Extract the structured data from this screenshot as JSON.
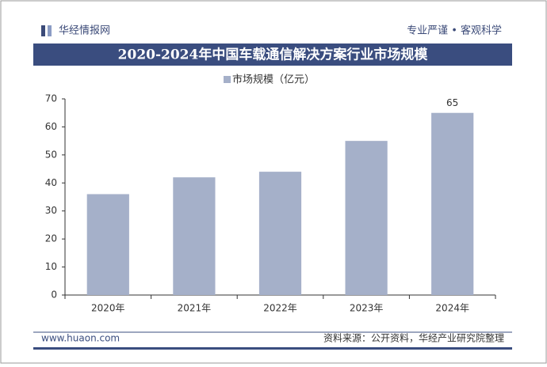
{
  "header": {
    "brand": "华经情报网",
    "slogan": "专业严谨 • 客观科学"
  },
  "chart_data": {
    "type": "bar",
    "title": "2020-2024年中国车载通信解决方案行业市场规模",
    "categories": [
      "2020年",
      "2021年",
      "2022年",
      "2023年",
      "2024年"
    ],
    "series": [
      {
        "name": "市场规模（亿元）",
        "color": "#a5b0c9",
        "values": [
          36,
          42,
          44,
          55,
          65
        ]
      }
    ],
    "value_labels": [
      null,
      null,
      null,
      null,
      "65"
    ],
    "ylim": [
      0,
      70
    ],
    "yticks": [
      0,
      10,
      20,
      30,
      40,
      50,
      60,
      70
    ],
    "grid": false
  },
  "footer": {
    "website": "www.huaon.com",
    "source": "资料来源：公开资料，华经产业研究院整理"
  }
}
